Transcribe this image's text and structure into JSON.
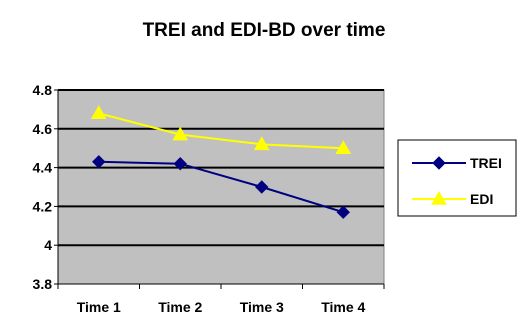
{
  "chart_data": {
    "type": "line",
    "title": "TREI and EDI-BD over time",
    "categories": [
      "Time 1",
      "Time 2",
      "Time 3",
      "Time 4"
    ],
    "ylim": [
      3.8,
      4.8
    ],
    "yticks": [
      "4.8",
      "4.6",
      "4.4",
      "4.2",
      "4",
      "3.8"
    ],
    "grid": true,
    "legend_position": "right",
    "series": [
      {
        "name": "TREI",
        "values": [
          4.43,
          4.42,
          4.3,
          4.17
        ],
        "color": "#000080",
        "marker": "diamond"
      },
      {
        "name": "EDI",
        "values": [
          4.68,
          4.57,
          4.52,
          4.5
        ],
        "color": "#ffff00",
        "marker": "triangle"
      }
    ]
  }
}
